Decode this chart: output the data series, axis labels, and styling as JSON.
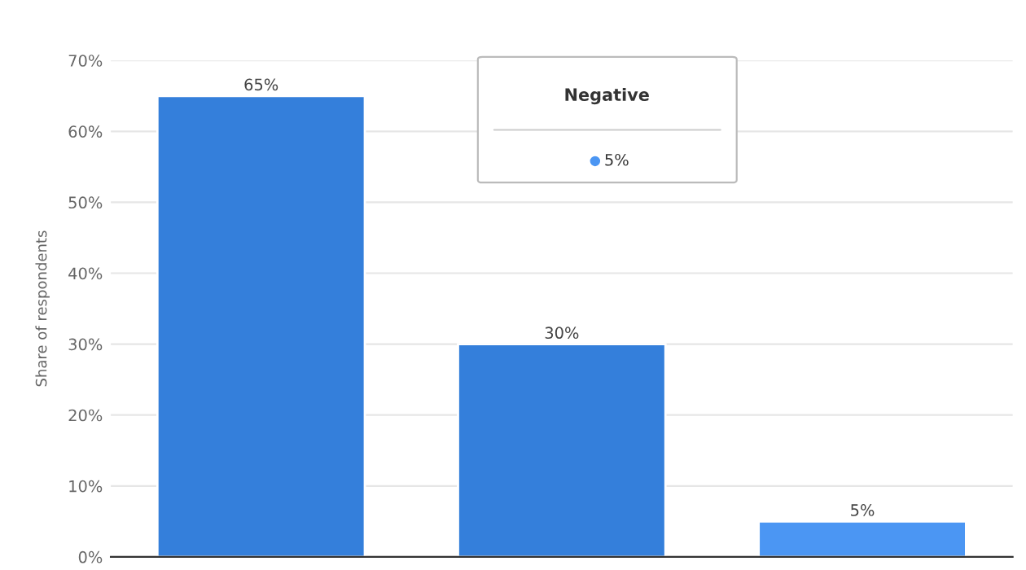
{
  "chart_data": {
    "type": "bar",
    "ylabel": "Share of respondents",
    "categories": [
      null,
      null,
      null
    ],
    "values": [
      65,
      30,
      5
    ],
    "colors": [
      "#347fdb",
      "#347fdb",
      "#4b96f3"
    ],
    "value_labels": [
      "65%",
      "30%",
      "5%"
    ],
    "ylim": [
      0,
      70
    ],
    "yticks": [
      {
        "value": 0,
        "label": "0%"
      },
      {
        "value": 10,
        "label": "10%"
      },
      {
        "value": 20,
        "label": "20%"
      },
      {
        "value": 30,
        "label": "30%"
      },
      {
        "value": 40,
        "label": "40%"
      },
      {
        "value": 50,
        "label": "50%"
      },
      {
        "value": 60,
        "label": "60%"
      },
      {
        "value": 70,
        "label": "70%"
      }
    ],
    "grid": "y",
    "annotations": [
      "Negative",
      "5%"
    ]
  }
}
